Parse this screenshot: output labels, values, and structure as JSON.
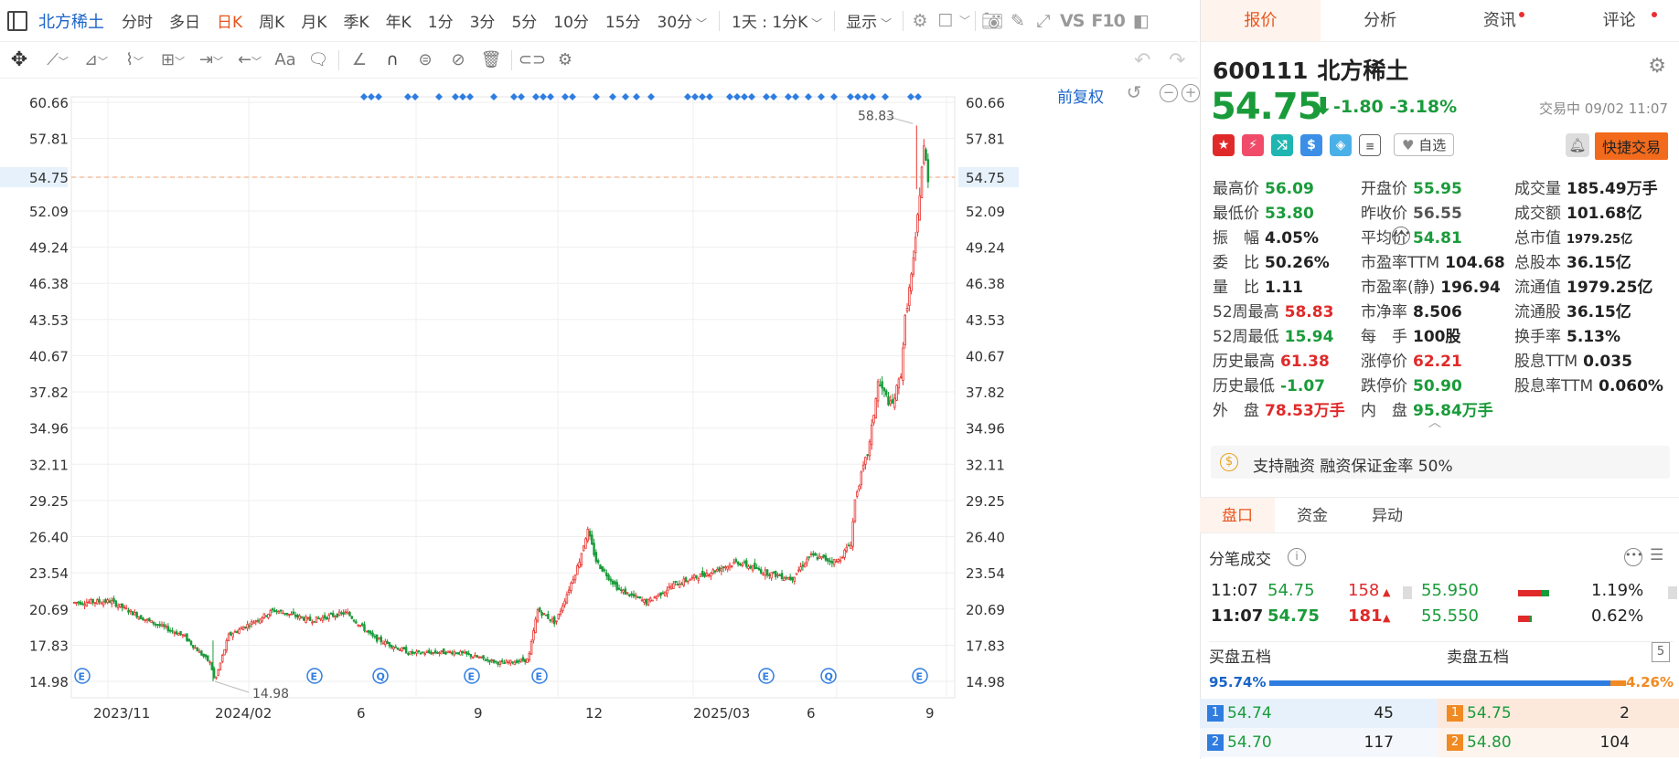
{
  "topbar": {
    "stock_tab": "北方稀土",
    "periods": [
      "分时",
      "多日",
      "日K",
      "周K",
      "月K",
      "季K",
      "年K",
      "1分",
      "3分",
      "5分",
      "10分",
      "15分",
      "30分"
    ],
    "active_period": "日K",
    "interval_select": "1天 : 1分K",
    "show_label": "显示",
    "vs": "VS",
    "f10": "F10"
  },
  "chart": {
    "restore_label": "前复权",
    "y_ticks": [
      "60.66",
      "57.81",
      "54.75",
      "52.09",
      "49.24",
      "46.38",
      "43.53",
      "40.67",
      "37.82",
      "34.96",
      "32.11",
      "29.25",
      "26.40",
      "23.54",
      "20.69",
      "17.83",
      "14.98"
    ],
    "x_labels": [
      "2023/11",
      "2024/02",
      "6",
      "9",
      "12",
      "2025/03",
      "6",
      "9"
    ],
    "current_price": "54.75",
    "high_label": "58.83",
    "low_label": "14.98"
  },
  "chart_data": {
    "type": "candlestick",
    "title": "",
    "xlabel": "",
    "ylabel": "",
    "ylim": [
      14.98,
      60.66
    ],
    "grid": true,
    "last_price": 54.75,
    "max": 58.83,
    "min": 14.98,
    "x_ticks": [
      "2023/11",
      "2024/02",
      "6",
      "9",
      "12",
      "2025/03",
      "6",
      "9"
    ],
    "trend": [
      [
        0,
        21.2
      ],
      [
        0.04,
        21.3
      ],
      [
        0.08,
        19.8
      ],
      [
        0.12,
        18.6
      ],
      [
        0.15,
        16.4
      ],
      [
        0.155,
        15.0
      ],
      [
        0.17,
        18.6
      ],
      [
        0.22,
        20.6
      ],
      [
        0.26,
        19.8
      ],
      [
        0.3,
        20.4
      ],
      [
        0.33,
        18.4
      ],
      [
        0.37,
        17.2
      ],
      [
        0.42,
        17.3
      ],
      [
        0.47,
        16.4
      ],
      [
        0.5,
        16.7
      ],
      [
        0.51,
        20.6
      ],
      [
        0.53,
        19.6
      ],
      [
        0.555,
        24.2
      ],
      [
        0.565,
        26.9
      ],
      [
        0.575,
        24.4
      ],
      [
        0.6,
        22.2
      ],
      [
        0.63,
        21.2
      ],
      [
        0.66,
        22.6
      ],
      [
        0.7,
        23.6
      ],
      [
        0.73,
        24.4
      ],
      [
        0.76,
        23.6
      ],
      [
        0.79,
        23.1
      ],
      [
        0.81,
        24.9
      ],
      [
        0.84,
        24.4
      ],
      [
        0.855,
        25.9
      ],
      [
        0.86,
        29.6
      ],
      [
        0.875,
        33.4
      ],
      [
        0.885,
        38.6
      ],
      [
        0.9,
        36.6
      ],
      [
        0.91,
        39.2
      ],
      [
        0.915,
        43.8
      ],
      [
        0.925,
        48.6
      ],
      [
        0.935,
        57.2
      ],
      [
        0.94,
        54.75
      ]
    ]
  },
  "drawtools": {
    "text_tool": "Aa"
  },
  "right": {
    "tabs": [
      "报价",
      "分析",
      "资讯",
      "评论"
    ],
    "active_tab": "报价",
    "code": "600111",
    "name": "北方稀土",
    "price": "54.75",
    "change": "-1.80 -3.18%",
    "status": "交易中 09/02 11:07",
    "watch_label": "自选",
    "quick_trade": "快捷交易",
    "stats": [
      [
        [
          "最高价",
          "56.09",
          "down"
        ],
        [
          "开盘价",
          "55.95",
          "down"
        ],
        [
          "成交量",
          "185.49万手",
          "neu"
        ]
      ],
      [
        [
          "最低价",
          "53.80",
          "down"
        ],
        [
          "昨收价",
          "56.55",
          "grey"
        ],
        [
          "成交额",
          "101.68亿",
          "neu"
        ]
      ],
      [
        [
          "振　幅",
          "4.05%",
          "neu"
        ],
        [
          "平均价",
          "54.81",
          "down"
        ],
        [
          "总市值",
          "1979.25亿",
          "neu"
        ]
      ],
      [
        [
          "委　比",
          "50.26%",
          "neu"
        ],
        [
          "市盈率TTM",
          "104.68",
          "neu"
        ],
        [
          "总股本",
          "36.15亿",
          "neu"
        ]
      ],
      [
        [
          "量　比",
          "1.11",
          "neu"
        ],
        [
          "市盈率(静)",
          "196.94",
          "neu"
        ],
        [
          "流通值",
          "1979.25亿",
          "neu"
        ]
      ],
      [
        [
          "52周最高",
          "58.83",
          "up"
        ],
        [
          "市净率",
          "8.506",
          "neu"
        ],
        [
          "流通股",
          "36.15亿",
          "neu"
        ]
      ],
      [
        [
          "52周最低",
          "15.94",
          "down"
        ],
        [
          "每　手",
          "100股",
          "neu"
        ],
        [
          "换手率",
          "5.13%",
          "neu"
        ]
      ],
      [
        [
          "历史最高",
          "61.38",
          "up"
        ],
        [
          "涨停价",
          "62.21",
          "up"
        ],
        [
          "股息TTM",
          "0.035",
          "neu"
        ]
      ],
      [
        [
          "历史最低",
          "-1.07",
          "down"
        ],
        [
          "跌停价",
          "50.90",
          "down"
        ],
        [
          "股息率TTM",
          "0.060%",
          "neu"
        ]
      ],
      [
        [
          "外　盘",
          "78.53万手",
          "up"
        ],
        [
          "内　盘",
          "95.84万手",
          "down"
        ],
        null
      ]
    ],
    "margin_text": "支持融资 融资保证金率 50%",
    "subtabs": [
      "盘口",
      "资金",
      "异动"
    ],
    "ticks_title": "分笔成交",
    "ticks": [
      {
        "time": "11:07",
        "price": "54.75",
        "vol": "158",
        "ref": "55.950",
        "pct": "1.19%"
      },
      {
        "time": "11:07",
        "price": "54.75",
        "vol": "181",
        "ref": "55.550",
        "pct": "0.62%"
      }
    ],
    "book_buy_label": "买盘五档",
    "book_sell_label": "卖盘五档",
    "book_level": "5",
    "buy_ratio": "95.74%",
    "sell_ratio": "4.26%",
    "buy_ratio_value": 95.74,
    "book": [
      {
        "bi": "1",
        "bp": "54.74",
        "bv": "45",
        "si": "1",
        "sp": "54.75",
        "sv": "2"
      },
      {
        "bi": "2",
        "bp": "54.70",
        "bv": "117",
        "si": "2",
        "sp": "54.80",
        "sv": "104"
      }
    ]
  }
}
